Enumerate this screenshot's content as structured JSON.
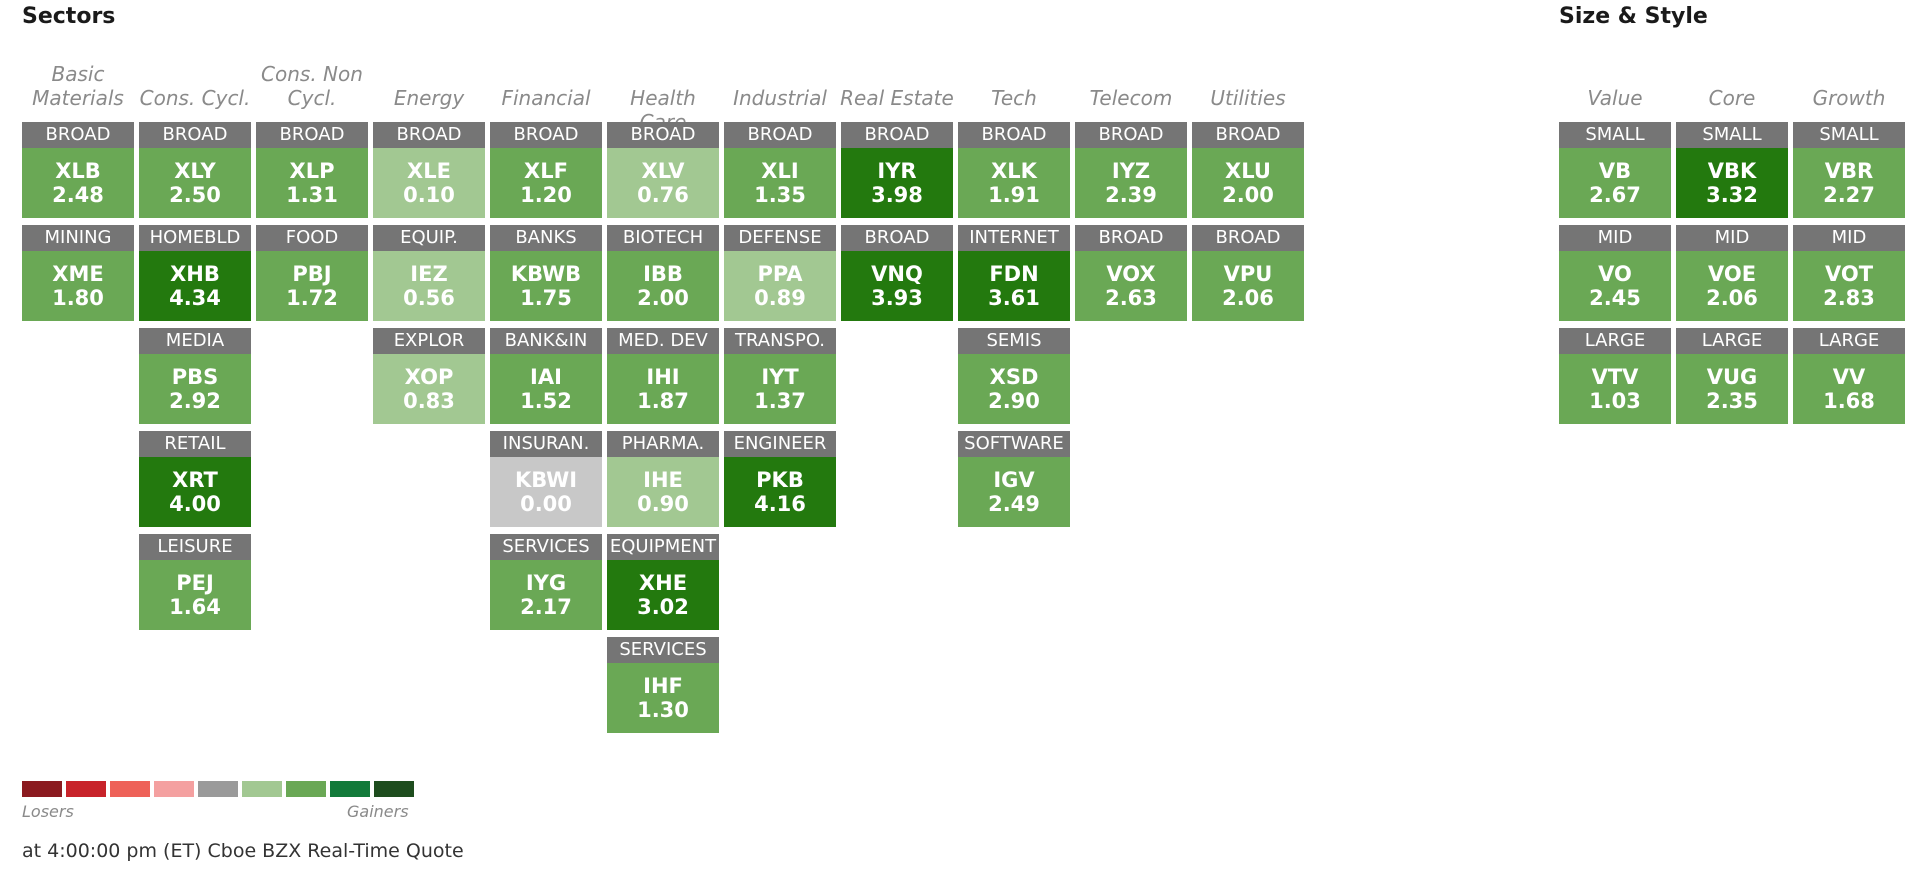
{
  "titles": {
    "sectors": "Sectors",
    "size_style": "Size & Style"
  },
  "colors": {
    "light_green": "#a2c892",
    "mid_green": "#6aa855",
    "dark_green": "#23790e",
    "neutral": "#c8c8c8",
    "label_bg": "#757575"
  },
  "sectors": [
    {
      "name": "Basic Materials",
      "tiles": [
        {
          "label": "BROAD",
          "symbol": "XLB",
          "value": "2.48",
          "shade": "mid"
        },
        {
          "label": "MINING",
          "symbol": "XME",
          "value": "1.80",
          "shade": "mid"
        }
      ]
    },
    {
      "name": "Cons. Cycl.",
      "tiles": [
        {
          "label": "BROAD",
          "symbol": "XLY",
          "value": "2.50",
          "shade": "mid"
        },
        {
          "label": "HOMEBLD",
          "symbol": "XHB",
          "value": "4.34",
          "shade": "dark"
        },
        {
          "label": "MEDIA",
          "symbol": "PBS",
          "value": "2.92",
          "shade": "mid"
        },
        {
          "label": "RETAIL",
          "symbol": "XRT",
          "value": "4.00",
          "shade": "dark"
        },
        {
          "label": "LEISURE",
          "symbol": "PEJ",
          "value": "1.64",
          "shade": "mid"
        }
      ]
    },
    {
      "name": "Cons. Non Cycl.",
      "tiles": [
        {
          "label": "BROAD",
          "symbol": "XLP",
          "value": "1.31",
          "shade": "mid"
        },
        {
          "label": "FOOD",
          "symbol": "PBJ",
          "value": "1.72",
          "shade": "mid"
        }
      ]
    },
    {
      "name": "Energy",
      "tiles": [
        {
          "label": "BROAD",
          "symbol": "XLE",
          "value": "0.10",
          "shade": "light"
        },
        {
          "label": "EQUIP.",
          "symbol": "IEZ",
          "value": "0.56",
          "shade": "light"
        },
        {
          "label": "EXPLOR",
          "symbol": "XOP",
          "value": "0.83",
          "shade": "light"
        }
      ]
    },
    {
      "name": "Financial",
      "tiles": [
        {
          "label": "BROAD",
          "symbol": "XLF",
          "value": "1.20",
          "shade": "mid"
        },
        {
          "label": "BANKS",
          "symbol": "KBWB",
          "value": "1.75",
          "shade": "mid"
        },
        {
          "label": "BANK&IN",
          "symbol": "IAI",
          "value": "1.52",
          "shade": "mid"
        },
        {
          "label": "INSURAN.",
          "symbol": "KBWI",
          "value": "0.00",
          "shade": "neutral"
        },
        {
          "label": "SERVICES",
          "symbol": "IYG",
          "value": "2.17",
          "shade": "mid"
        }
      ]
    },
    {
      "name": "Health Care",
      "tiles": [
        {
          "label": "BROAD",
          "symbol": "XLV",
          "value": "0.76",
          "shade": "light"
        },
        {
          "label": "BIOTECH",
          "symbol": "IBB",
          "value": "2.00",
          "shade": "mid"
        },
        {
          "label": "MED. DEV",
          "symbol": "IHI",
          "value": "1.87",
          "shade": "mid"
        },
        {
          "label": "PHARMA.",
          "symbol": "IHE",
          "value": "0.90",
          "shade": "light"
        },
        {
          "label": "EQUIPMENT",
          "symbol": "XHE",
          "value": "3.02",
          "shade": "dark"
        },
        {
          "label": "SERVICES",
          "symbol": "IHF",
          "value": "1.30",
          "shade": "mid"
        }
      ]
    },
    {
      "name": "Industrial",
      "tiles": [
        {
          "label": "BROAD",
          "symbol": "XLI",
          "value": "1.35",
          "shade": "mid"
        },
        {
          "label": "DEFENSE",
          "symbol": "PPA",
          "value": "0.89",
          "shade": "light"
        },
        {
          "label": "TRANSPO.",
          "symbol": "IYT",
          "value": "1.37",
          "shade": "mid"
        },
        {
          "label": "ENGINEER",
          "symbol": "PKB",
          "value": "4.16",
          "shade": "dark"
        }
      ]
    },
    {
      "name": "Real Estate",
      "tiles": [
        {
          "label": "BROAD",
          "symbol": "IYR",
          "value": "3.98",
          "shade": "dark"
        },
        {
          "label": "BROAD",
          "symbol": "VNQ",
          "value": "3.93",
          "shade": "dark"
        }
      ]
    },
    {
      "name": "Tech",
      "tiles": [
        {
          "label": "BROAD",
          "symbol": "XLK",
          "value": "1.91",
          "shade": "mid"
        },
        {
          "label": "INTERNET",
          "symbol": "FDN",
          "value": "3.61",
          "shade": "dark"
        },
        {
          "label": "SEMIS",
          "symbol": "XSD",
          "value": "2.90",
          "shade": "mid"
        },
        {
          "label": "SOFTWARE",
          "symbol": "IGV",
          "value": "2.49",
          "shade": "mid"
        }
      ]
    },
    {
      "name": "Telecom",
      "tiles": [
        {
          "label": "BROAD",
          "symbol": "IYZ",
          "value": "2.39",
          "shade": "mid"
        },
        {
          "label": "BROAD",
          "symbol": "VOX",
          "value": "2.63",
          "shade": "mid"
        }
      ]
    },
    {
      "name": "Utilities",
      "tiles": [
        {
          "label": "BROAD",
          "symbol": "XLU",
          "value": "2.00",
          "shade": "mid"
        },
        {
          "label": "BROAD",
          "symbol": "VPU",
          "value": "2.06",
          "shade": "mid"
        }
      ]
    }
  ],
  "size_style": [
    {
      "name": "Value",
      "tiles": [
        {
          "label": "SMALL",
          "symbol": "VB",
          "value": "2.67",
          "shade": "mid"
        },
        {
          "label": "MID",
          "symbol": "VO",
          "value": "2.45",
          "shade": "mid"
        },
        {
          "label": "LARGE",
          "symbol": "VTV",
          "value": "1.03",
          "shade": "mid"
        }
      ]
    },
    {
      "name": "Core",
      "tiles": [
        {
          "label": "SMALL",
          "symbol": "VBK",
          "value": "3.32",
          "shade": "dark"
        },
        {
          "label": "MID",
          "symbol": "VOE",
          "value": "2.06",
          "shade": "mid"
        },
        {
          "label": "LARGE",
          "symbol": "VUG",
          "value": "2.35",
          "shade": "mid"
        }
      ]
    },
    {
      "name": "Growth",
      "tiles": [
        {
          "label": "SMALL",
          "symbol": "VBR",
          "value": "2.27",
          "shade": "mid"
        },
        {
          "label": "MID",
          "symbol": "VOT",
          "value": "2.83",
          "shade": "mid"
        },
        {
          "label": "LARGE",
          "symbol": "VV",
          "value": "1.68",
          "shade": "mid"
        }
      ]
    }
  ],
  "legend": {
    "losers_label": "Losers",
    "gainers_label": "Gainers",
    "swatches": [
      "#8b1a1f",
      "#c8232a",
      "#ee6158",
      "#f4a0a0",
      "#9a9a9a",
      "#a2c892",
      "#6aa855",
      "#127a3a",
      "#1e4d1e"
    ]
  },
  "footer": "at 4:00:00 pm (ET) Cboe BZX Real-Time Quote"
}
